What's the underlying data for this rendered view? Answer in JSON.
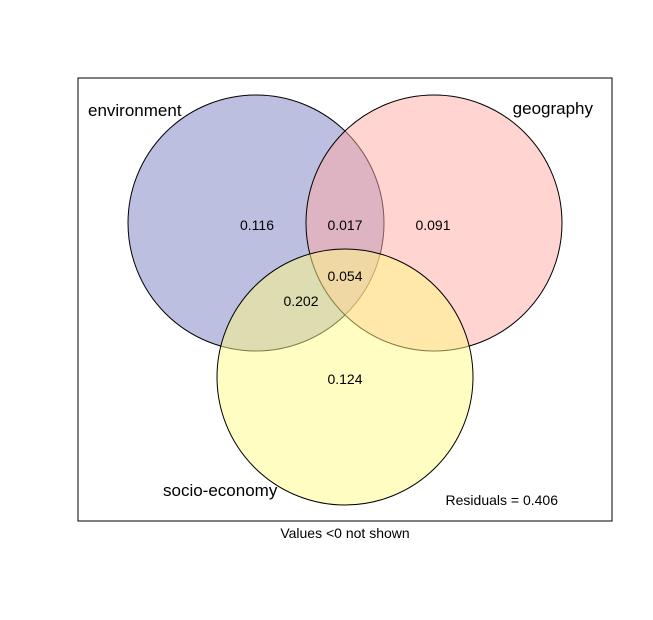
{
  "venn": {
    "sets": [
      {
        "name": "environment",
        "color": "#7b7fc4"
      },
      {
        "name": "geography",
        "color": "#ffaaa3"
      },
      {
        "name": "socio-economy",
        "color": "#fffb84"
      }
    ],
    "regions": {
      "environment_only": "0.116",
      "environment_geography": "0.017",
      "geography_only": "0.091",
      "all_three": "0.054",
      "environment_socio_economy": "0.202",
      "socio_economy_only": "0.124"
    },
    "residuals": "Residuals = 0.406",
    "footnote": "Values <0 not shown"
  }
}
